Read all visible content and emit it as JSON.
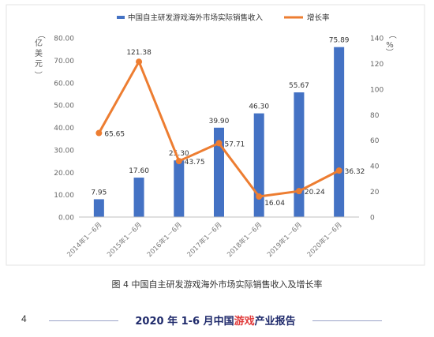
{
  "chart_data": {
    "type": "bar+line",
    "categories": [
      "2014年1－6月",
      "2015年1－6月",
      "2016年1－6月",
      "2017年1－6月",
      "2018年1－6月",
      "2019年1－6月",
      "2020年1－6月"
    ],
    "series": [
      {
        "name": "中国自主研发游戏海外市场实际销售收入",
        "type": "bar",
        "axis": "left",
        "values": [
          7.95,
          17.6,
          25.3,
          39.9,
          46.3,
          55.67,
          75.89
        ],
        "color": "#4472c4"
      },
      {
        "name": "增长率",
        "type": "line",
        "axis": "right",
        "values": [
          65.65,
          121.38,
          43.75,
          57.71,
          16.04,
          20.24,
          36.32
        ],
        "color": "#ed7d31"
      }
    ],
    "left_axis": {
      "label": "亿美元",
      "ylim": [
        0,
        80
      ],
      "ticks": [
        "0.00",
        "10.00",
        "20.00",
        "30.00",
        "40.00",
        "50.00",
        "60.00",
        "70.00",
        "80.00"
      ]
    },
    "right_axis": {
      "label": "%",
      "ylim": [
        0,
        140
      ],
      "ticks": [
        "0",
        "20",
        "40",
        "60",
        "80",
        "100",
        "120",
        "140"
      ]
    },
    "bar_labels": [
      "7.95",
      "17.60",
      "25.30",
      "39.90",
      "46.30",
      "55.67",
      "75.89"
    ],
    "line_labels": [
      "65.65",
      "121.38",
      "43.75",
      "57.71",
      "16.04",
      "20.24",
      "36.32"
    ],
    "legend_position": "top",
    "grid": false
  },
  "caption": "图 4 中国自主研发游戏海外市场实际销售收入及增长率",
  "footer": {
    "page_number": "4",
    "title_prefix": "2020 年 1-6 月中国",
    "title_highlight": "游戏",
    "title_suffix": "产业报告"
  }
}
